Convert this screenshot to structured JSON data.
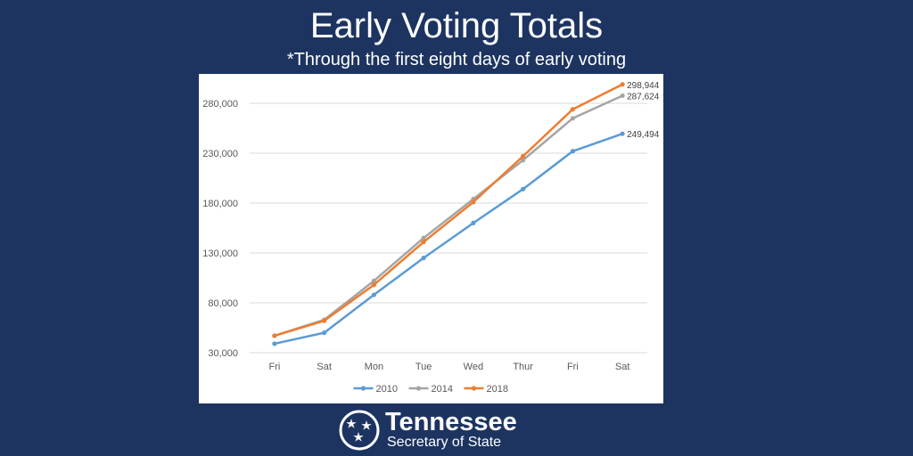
{
  "header": {
    "title": "Early Voting Totals",
    "subtitle": "*Through the first eight days of early voting"
  },
  "footer": {
    "name": "Tennessee",
    "sub": "Secretary of State"
  },
  "colors": {
    "background": "#1d3461",
    "series_2010": "#5b9bd5",
    "series_2014": "#a5a5a5",
    "series_2018": "#ed7d31"
  },
  "chart_data": {
    "type": "line",
    "categories": [
      "Fri",
      "Sat",
      "Mon",
      "Tue",
      "Wed",
      "Thur",
      "Fri",
      "Sat"
    ],
    "ylim": [
      30000,
      290000
    ],
    "yticks": [
      30000,
      80000,
      130000,
      180000,
      230000,
      280000
    ],
    "ytick_labels": [
      "30,000",
      "80,000",
      "130,000",
      "180,000",
      "230,000",
      "280,000"
    ],
    "grid": true,
    "legend_position": "bottom",
    "series": [
      {
        "name": "2010",
        "color": "#5b9bd5",
        "values": [
          39000,
          50000,
          88000,
          125000,
          160000,
          194000,
          232000,
          249494
        ],
        "end_label": "249,494"
      },
      {
        "name": "2014",
        "color": "#a5a5a5",
        "values": [
          47000,
          63000,
          102000,
          145000,
          184000,
          223000,
          265000,
          287624
        ],
        "end_label": "287,624"
      },
      {
        "name": "2018",
        "color": "#ed7d31",
        "values": [
          47000,
          62000,
          98000,
          141000,
          181000,
          227000,
          274000,
          298944
        ],
        "end_label": "298,944"
      }
    ]
  }
}
